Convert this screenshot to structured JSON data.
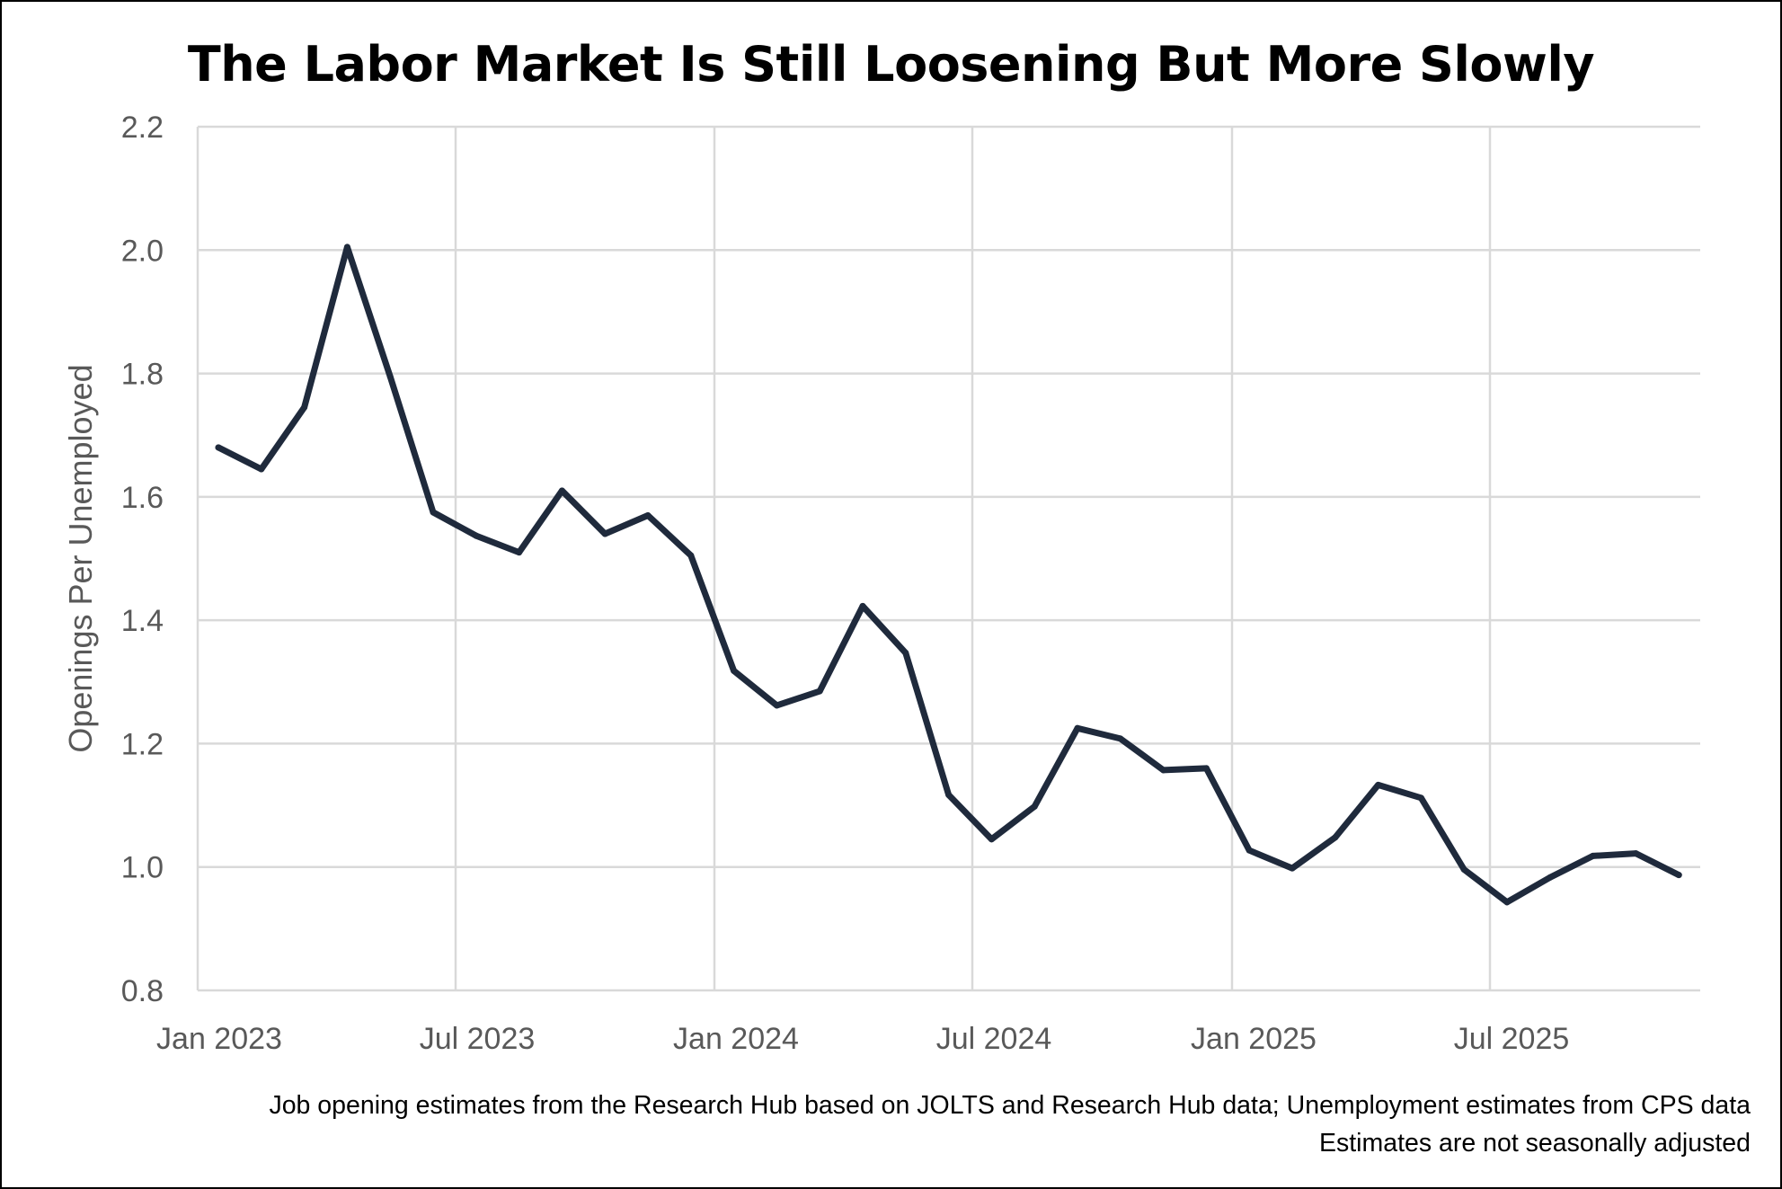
{
  "chart_data": {
    "type": "line",
    "title": "The Labor Market Is Still Loosening But More Slowly",
    "xlabel": "",
    "ylabel": "Openings Per Unemployed",
    "ylim": [
      0.8,
      2.2
    ],
    "yticks": [
      0.8,
      1.0,
      1.2,
      1.4,
      1.6,
      1.8,
      2.0,
      2.2
    ],
    "ytick_labels": [
      "0.8",
      "1.0",
      "1.2",
      "1.4",
      "1.6",
      "1.8",
      "2.0",
      "2.2"
    ],
    "xtick_labels": [
      "Jan 2023",
      "Jul 2023",
      "Jan 2024",
      "Jul 2024",
      "Jan 2025",
      "Jul 2025"
    ],
    "grid": true,
    "series": [
      {
        "name": "Openings Per Unemployed",
        "color": "#1f2a3c",
        "x": [
          "2023-01",
          "2023-02",
          "2023-03",
          "2023-04",
          "2023-05",
          "2023-06",
          "2023-07",
          "2023-08",
          "2023-09",
          "2023-10",
          "2023-11",
          "2023-12",
          "2024-01",
          "2024-02",
          "2024-03",
          "2024-04",
          "2024-05",
          "2024-06",
          "2024-07",
          "2024-08",
          "2024-09",
          "2024-10",
          "2024-11",
          "2024-12",
          "2025-01",
          "2025-02",
          "2025-03",
          "2025-04",
          "2025-05",
          "2025-06",
          "2025-07",
          "2025-08",
          "2025-09",
          "2025-10",
          "2025-11"
        ],
        "values": [
          1.68,
          1.645,
          1.745,
          2.005,
          1.795,
          1.575,
          1.537,
          1.51,
          1.61,
          1.54,
          1.57,
          1.505,
          1.318,
          1.262,
          1.285,
          1.423,
          1.347,
          1.117,
          1.045,
          1.098,
          1.225,
          1.208,
          1.157,
          1.16,
          1.027,
          0.998,
          1.048,
          1.133,
          1.112,
          0.996,
          0.943,
          0.983,
          1.018,
          1.022,
          0.987
        ]
      }
    ]
  },
  "footnotes": {
    "line1": "Job opening estimates from the Research Hub based on JOLTS and Research Hub data; Unemployment estimates from CPS data",
    "line2": "Estimates are not seasonally adjusted"
  }
}
